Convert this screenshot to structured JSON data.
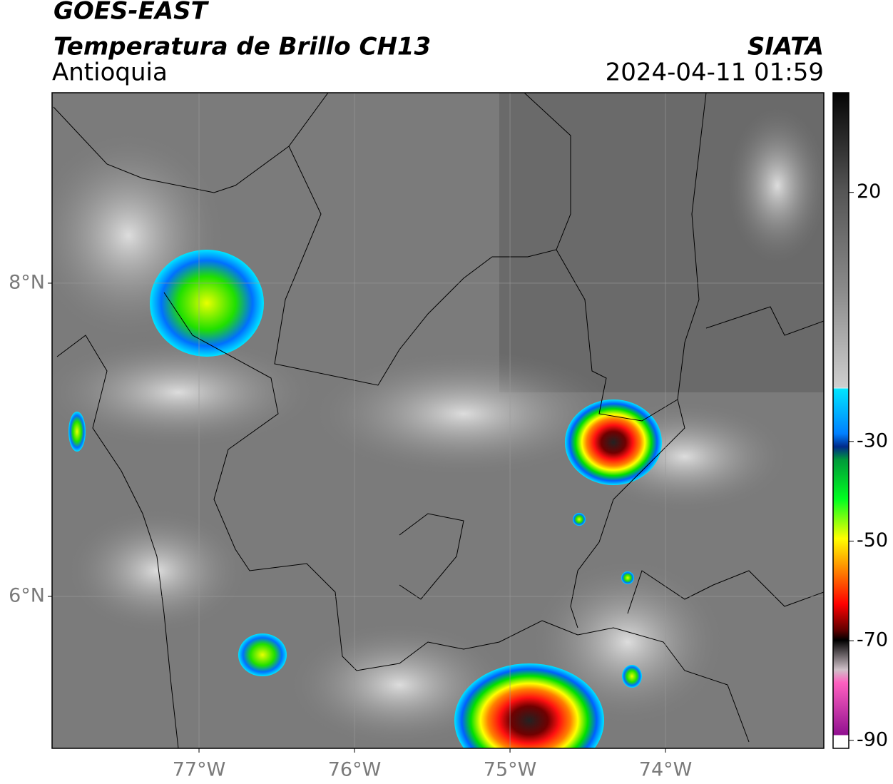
{
  "header": {
    "title": "GOES-EAST",
    "subtitle": "Temperatura de Brillo CH13",
    "region": "Antioquia",
    "source": "SIATA",
    "datetime": "2024-04-11 01:59"
  },
  "map": {
    "xlim": [
      -77.945,
      -72.982
    ],
    "ylim": [
      5.03,
      9.216
    ],
    "xticks": [
      {
        "value": -77,
        "label": "77°W"
      },
      {
        "value": -76,
        "label": "76°W"
      },
      {
        "value": -75,
        "label": "75°W"
      },
      {
        "value": -74,
        "label": "74°W"
      }
    ],
    "yticks": [
      {
        "value": 8,
        "label": "8°N"
      },
      {
        "value": 6,
        "label": "6°N"
      }
    ],
    "grid": true
  },
  "colorbar": {
    "clim": [
      -91.6,
      40
    ],
    "ticks": [
      20,
      -30,
      -50,
      -70,
      -90
    ]
  }
}
